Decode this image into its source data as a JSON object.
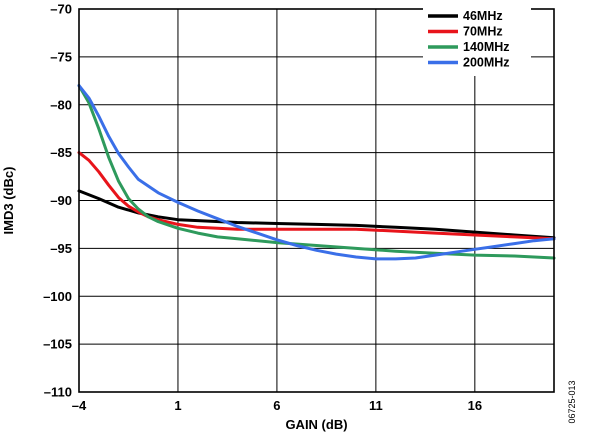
{
  "chart_data": {
    "type": "line",
    "xlabel": "GAIN (dB)",
    "ylabel": "IMD3 (dBc)",
    "xlim": [
      -4,
      20
    ],
    "ylim": [
      -110,
      -70
    ],
    "x_ticks": [
      -4,
      1,
      6,
      11,
      16
    ],
    "x_tick_labels": [
      "–4",
      "1",
      "6",
      "11",
      "16"
    ],
    "y_ticks": [
      -70,
      -75,
      -80,
      -85,
      -90,
      -95,
      -100,
      -105,
      -110
    ],
    "y_tick_labels": [
      "–70",
      "–75",
      "–80",
      "–85",
      "–90",
      "–95",
      "–100",
      "–105",
      "–110"
    ],
    "grid": true,
    "legend_position": "top-right",
    "series": [
      {
        "name": "46MHz",
        "color": "#000000",
        "x": [
          -4,
          -3,
          -2,
          -1,
          0,
          1,
          2,
          4,
          6,
          8,
          10,
          12,
          14,
          16,
          18,
          20
        ],
        "y": [
          -89,
          -89.8,
          -90.7,
          -91.3,
          -91.7,
          -92,
          -92.1,
          -92.3,
          -92.4,
          -92.5,
          -92.6,
          -92.8,
          -93.0,
          -93.3,
          -93.6,
          -93.9
        ]
      },
      {
        "name": "70MHz",
        "color": "#e8141b",
        "x": [
          -4,
          -3.5,
          -3,
          -2.5,
          -2,
          -1.5,
          -1,
          -0.5,
          0,
          1,
          2,
          4,
          6,
          8,
          10,
          12,
          14,
          16,
          18,
          20
        ],
        "y": [
          -85,
          -85.8,
          -87,
          -88.4,
          -89.7,
          -90.6,
          -91.2,
          -91.7,
          -92.0,
          -92.5,
          -92.8,
          -93.0,
          -93.0,
          -93.0,
          -93.0,
          -93.2,
          -93.4,
          -93.6,
          -93.8,
          -94.0
        ]
      },
      {
        "name": "140MHz",
        "color": "#2e9a5c",
        "x": [
          -4,
          -3.5,
          -3,
          -2.5,
          -2,
          -1.5,
          -1,
          -0.5,
          0,
          1,
          2,
          3,
          4,
          6,
          8,
          10,
          12,
          14,
          16,
          18,
          20
        ],
        "y": [
          -78,
          -79.8,
          -82.5,
          -85.5,
          -88,
          -89.8,
          -90.9,
          -91.7,
          -92.2,
          -92.9,
          -93.4,
          -93.8,
          -94.0,
          -94.4,
          -94.7,
          -95.0,
          -95.3,
          -95.5,
          -95.7,
          -95.8,
          -96.0
        ]
      },
      {
        "name": "200MHz",
        "color": "#3a6fe8",
        "x": [
          -4,
          -3.5,
          -3,
          -2.5,
          -2,
          -1.5,
          -1,
          0,
          1,
          2,
          3,
          4,
          5,
          6,
          7,
          8,
          9,
          10,
          11,
          12,
          13,
          14,
          15,
          16,
          17,
          18,
          19,
          20
        ],
        "y": [
          -78,
          -79.3,
          -81.2,
          -83.3,
          -85.1,
          -86.5,
          -87.8,
          -89.2,
          -90.2,
          -91.1,
          -91.9,
          -92.7,
          -93.4,
          -94.1,
          -94.7,
          -95.2,
          -95.6,
          -95.9,
          -96.1,
          -96.1,
          -96.0,
          -95.7,
          -95.4,
          -95.1,
          -94.8,
          -94.5,
          -94.2,
          -94.0
        ]
      }
    ]
  },
  "figure_id": "06725-013"
}
